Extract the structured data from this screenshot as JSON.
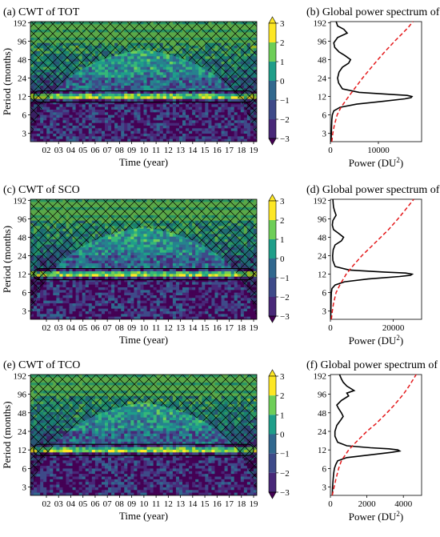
{
  "colors": {
    "viridis": [
      "#440154",
      "#482878",
      "#3e4a89",
      "#31688e",
      "#26828e",
      "#1f9e89",
      "#35b779",
      "#6ece58",
      "#b5de2b",
      "#fde725"
    ],
    "global_line": "#000000",
    "significance_line": "#e41a1c",
    "coi_hatch": "#000000"
  },
  "chart_data": [
    {
      "type": "heatmap",
      "panel": "a",
      "title": "(a) CWT of  TOT",
      "xlabel": "Time (year)",
      "ylabel": "Period (months)",
      "x_ticks": [
        "02",
        "03",
        "04",
        "05",
        "06",
        "07",
        "08",
        "09",
        "10",
        "11",
        "12",
        "13",
        "14",
        "15",
        "16",
        "17",
        "18",
        "19"
      ],
      "y_ticks": [
        "3",
        "6",
        "12",
        "24",
        "48",
        "96",
        "192"
      ],
      "y_scale": "log2",
      "colorbar": {
        "ticks": [
          "3",
          "2",
          "1",
          "0",
          "−1",
          "−2",
          "−3"
        ],
        "range": [
          -3,
          3
        ]
      },
      "dominant_period_months": 12,
      "cone_of_influence_peak_months": 70,
      "hatched_region": "outside cone of influence"
    },
    {
      "type": "line",
      "panel": "b",
      "title": "(b) Global power spectrum of TOT",
      "xlabel": "Power (DU",
      "xlabel_sup": "2",
      "xlabel_close": ")",
      "x_ticks": [
        "0",
        "10000"
      ],
      "x_range": [
        0,
        19000
      ],
      "y_ticks": [
        "3",
        "6",
        "12",
        "24",
        "48",
        "96",
        "192"
      ],
      "series": [
        {
          "period": [
            2.2,
            3,
            4,
            5,
            6,
            7,
            8,
            9,
            10,
            11,
            11.5,
            12,
            12.5,
            13,
            14,
            16,
            20,
            24,
            30,
            36,
            42,
            48,
            56,
            64,
            76,
            90,
            110,
            130,
            150,
            170,
            200
          ],
          "power": [
            150,
            200,
            250,
            300,
            400,
            700,
            2000,
            5500,
            11000,
            15500,
            16800,
            17000,
            16000,
            12500,
            6000,
            2500,
            1700,
            1500,
            1800,
            2500,
            3800,
            4200,
            3000,
            1800,
            900,
            700,
            1500,
            3500,
            2800,
            1500,
            1200
          ]
        },
        {
          "period": [
            2.2,
            3,
            4,
            6,
            8,
            12,
            16,
            24,
            32,
            48,
            64,
            96,
            128,
            160,
            200
          ],
          "power": [
            300,
            500,
            800,
            1400,
            2200,
            3800,
            5000,
            6700,
            8000,
            9900,
            11300,
            13400,
            15000,
            16200,
            17200
          ]
        }
      ]
    },
    {
      "type": "heatmap",
      "panel": "c",
      "title": "(c) CWT of  SCO",
      "xlabel": "Time (year)",
      "ylabel": "Period (months)",
      "x_ticks": [
        "02",
        "03",
        "04",
        "05",
        "06",
        "07",
        "08",
        "09",
        "10",
        "11",
        "12",
        "13",
        "14",
        "15",
        "16",
        "17",
        "18",
        "19"
      ],
      "y_ticks": [
        "3",
        "6",
        "12",
        "24",
        "48",
        "96",
        "192"
      ],
      "y_scale": "log2",
      "colorbar": {
        "ticks": [
          "3",
          "2",
          "1",
          "0",
          "−1",
          "−2",
          "−3"
        ],
        "range": [
          -3,
          3
        ]
      },
      "dominant_period_months": 12,
      "cone_of_influence_peak_months": 70,
      "hatched_region": "outside cone of influence"
    },
    {
      "type": "line",
      "panel": "d",
      "title": "(d) Global power spectrum of SCO",
      "xlabel": "Power (DU",
      "xlabel_sup": "2",
      "xlabel_close": ")",
      "x_ticks": [
        "0",
        "20000"
      ],
      "x_range": [
        0,
        29000
      ],
      "y_ticks": [
        "3",
        "6",
        "12",
        "24",
        "48",
        "96",
        "192"
      ],
      "series": [
        {
          "period": [
            2.2,
            3,
            4,
            5,
            6,
            7,
            8,
            9,
            10,
            11,
            11.5,
            12,
            12.5,
            13,
            14,
            16,
            20,
            24,
            30,
            36,
            42,
            48,
            56,
            64,
            76,
            90,
            110,
            130,
            150,
            170,
            200
          ],
          "power": [
            100,
            150,
            200,
            250,
            300,
            500,
            1500,
            4500,
            12000,
            22000,
            25500,
            26000,
            24000,
            17000,
            6000,
            1500,
            800,
            700,
            900,
            1500,
            3500,
            4200,
            2500,
            1000,
            600,
            800,
            1800,
            1300,
            1000,
            900,
            800
          ]
        },
        {
          "period": [
            2.2,
            3,
            4,
            6,
            8,
            12,
            16,
            24,
            32,
            48,
            64,
            96,
            128,
            160,
            200
          ],
          "power": [
            300,
            600,
            1000,
            1800,
            3000,
            5000,
            7000,
            10000,
            12500,
            16000,
            18500,
            21500,
            23500,
            25000,
            26500
          ]
        }
      ]
    },
    {
      "type": "heatmap",
      "panel": "e",
      "title": "(e) CWT of  TCO",
      "xlabel": "Time (year)",
      "ylabel": "Period (months)",
      "x_ticks": [
        "02",
        "03",
        "04",
        "05",
        "06",
        "07",
        "08",
        "09",
        "10",
        "11",
        "12",
        "13",
        "14",
        "15",
        "16",
        "17",
        "18",
        "19"
      ],
      "y_ticks": [
        "3",
        "6",
        "12",
        "24",
        "48",
        "96",
        "192"
      ],
      "y_scale": "log2",
      "colorbar": {
        "ticks": [
          "3",
          "2",
          "1",
          "0",
          "−1",
          "−2",
          "−3"
        ],
        "range": [
          -3,
          3
        ]
      },
      "dominant_period_months": 12,
      "cone_of_influence_peak_months": 70,
      "hatched_region": "outside cone of influence"
    },
    {
      "type": "line",
      "panel": "f",
      "title": "(f) Global power spectrum of TCO",
      "xlabel": "Power (DU",
      "xlabel_sup": "2",
      "xlabel_close": ")",
      "x_ticks": [
        "0",
        "2000",
        "4000"
      ],
      "x_range": [
        0,
        5000
      ],
      "y_ticks": [
        "3",
        "6",
        "12",
        "24",
        "48",
        "96",
        "192"
      ],
      "series": [
        {
          "period": [
            2.2,
            3,
            4,
            5,
            6,
            7,
            8,
            9,
            10,
            11,
            11.5,
            12,
            12.5,
            13,
            14,
            16,
            20,
            24,
            30,
            36,
            42,
            48,
            56,
            64,
            76,
            90,
            100,
            110,
            130,
            150,
            170,
            200
          ],
          "power": [
            100,
            120,
            150,
            180,
            220,
            300,
            400,
            900,
            2200,
            3400,
            3800,
            3700,
            3200,
            2200,
            900,
            400,
            250,
            250,
            350,
            550,
            700,
            600,
            450,
            350,
            600,
            1000,
            900,
            1300,
            900,
            700,
            600,
            500
          ]
        },
        {
          "period": [
            2.2,
            3,
            4,
            6,
            8,
            12,
            16,
            24,
            32,
            48,
            64,
            96,
            128,
            160,
            200
          ],
          "power": [
            100,
            200,
            300,
            450,
            600,
            1000,
            1400,
            2000,
            2500,
            3100,
            3500,
            4000,
            4300,
            4500,
            4700
          ]
        }
      ]
    }
  ]
}
